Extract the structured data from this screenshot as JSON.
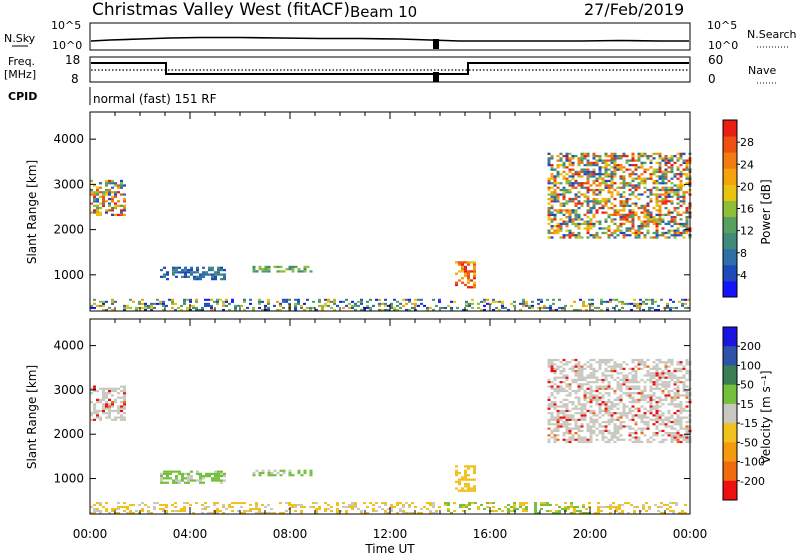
{
  "header": {
    "title": "Christmas Valley West (fitACF)",
    "beam": "Beam 10",
    "date": "27/Feb/2019"
  },
  "nsky": {
    "label": "N.Sky",
    "right_label": "N.Search",
    "yticks": [
      "10^5",
      "10^0"
    ]
  },
  "freq": {
    "label_line1": "Freq.",
    "label_line2": "[MHz]",
    "right_label": "Nave",
    "left_ticks": [
      "18",
      "8"
    ],
    "right_ticks": [
      "60",
      "0"
    ],
    "cpid_label": "CPID",
    "cpid_text": "normal (fast) 151 RF"
  },
  "chart_data": [
    {
      "type": "heatmap",
      "name": "power-panel",
      "ylabel": "Slant Range [km]",
      "yticks": [
        1000,
        2000,
        3000,
        4000
      ],
      "ylim": [
        200,
        4600
      ],
      "xlim": [
        0,
        24
      ],
      "colorbar": {
        "label": "Power [dB]",
        "ticks": [
          "4",
          "8",
          "12",
          "16",
          "20",
          "24",
          "28"
        ],
        "colors": [
          "#1414ff",
          "#1f48b8",
          "#2e6fa8",
          "#3f8a78",
          "#57a060",
          "#8fbf3a",
          "#e9c40f",
          "#f5a20b",
          "#f07d0f",
          "#ef4f10",
          "#e81f12"
        ]
      },
      "regions": [
        {
          "t0": 0.0,
          "t1": 1.4,
          "r0": 2300,
          "r1": 3100,
          "level": "mixed-high"
        },
        {
          "t0": 2.8,
          "t1": 5.4,
          "r0": 880,
          "r1": 1150,
          "level": "low"
        },
        {
          "t0": 6.5,
          "t1": 8.8,
          "r0": 1050,
          "r1": 1200,
          "level": "mid"
        },
        {
          "t0": 14.6,
          "t1": 15.4,
          "r0": 700,
          "r1": 1300,
          "level": "high"
        },
        {
          "t0": 18.3,
          "t1": 24.0,
          "r0": 1800,
          "r1": 3700,
          "level": "mixed-high"
        },
        {
          "t0": 0.0,
          "t1": 24.0,
          "r0": 200,
          "r1": 450,
          "level": "ground-scatter"
        }
      ]
    },
    {
      "type": "heatmap",
      "name": "velocity-panel",
      "ylabel": "Slant Range [km]",
      "yticks": [
        1000,
        2000,
        3000,
        4000
      ],
      "ylim": [
        200,
        4600
      ],
      "xlim": [
        0,
        24
      ],
      "colorbar": {
        "label": "Velocity [m s⁻¹]",
        "ticks": [
          "200",
          "100",
          "50",
          "15",
          "-15",
          "-50",
          "-100",
          "-200"
        ],
        "colors": [
          "#1a14e0",
          "#2e52a8",
          "#3b7d55",
          "#74c03a",
          "#c8c8c0",
          "#f0c01c",
          "#f59a0e",
          "#f06a0e",
          "#ee1010"
        ]
      },
      "xticks": [
        "00:00",
        "04:00",
        "08:00",
        "12:00",
        "16:00",
        "20:00",
        "00:00"
      ],
      "xlabel": "Time UT"
    }
  ]
}
